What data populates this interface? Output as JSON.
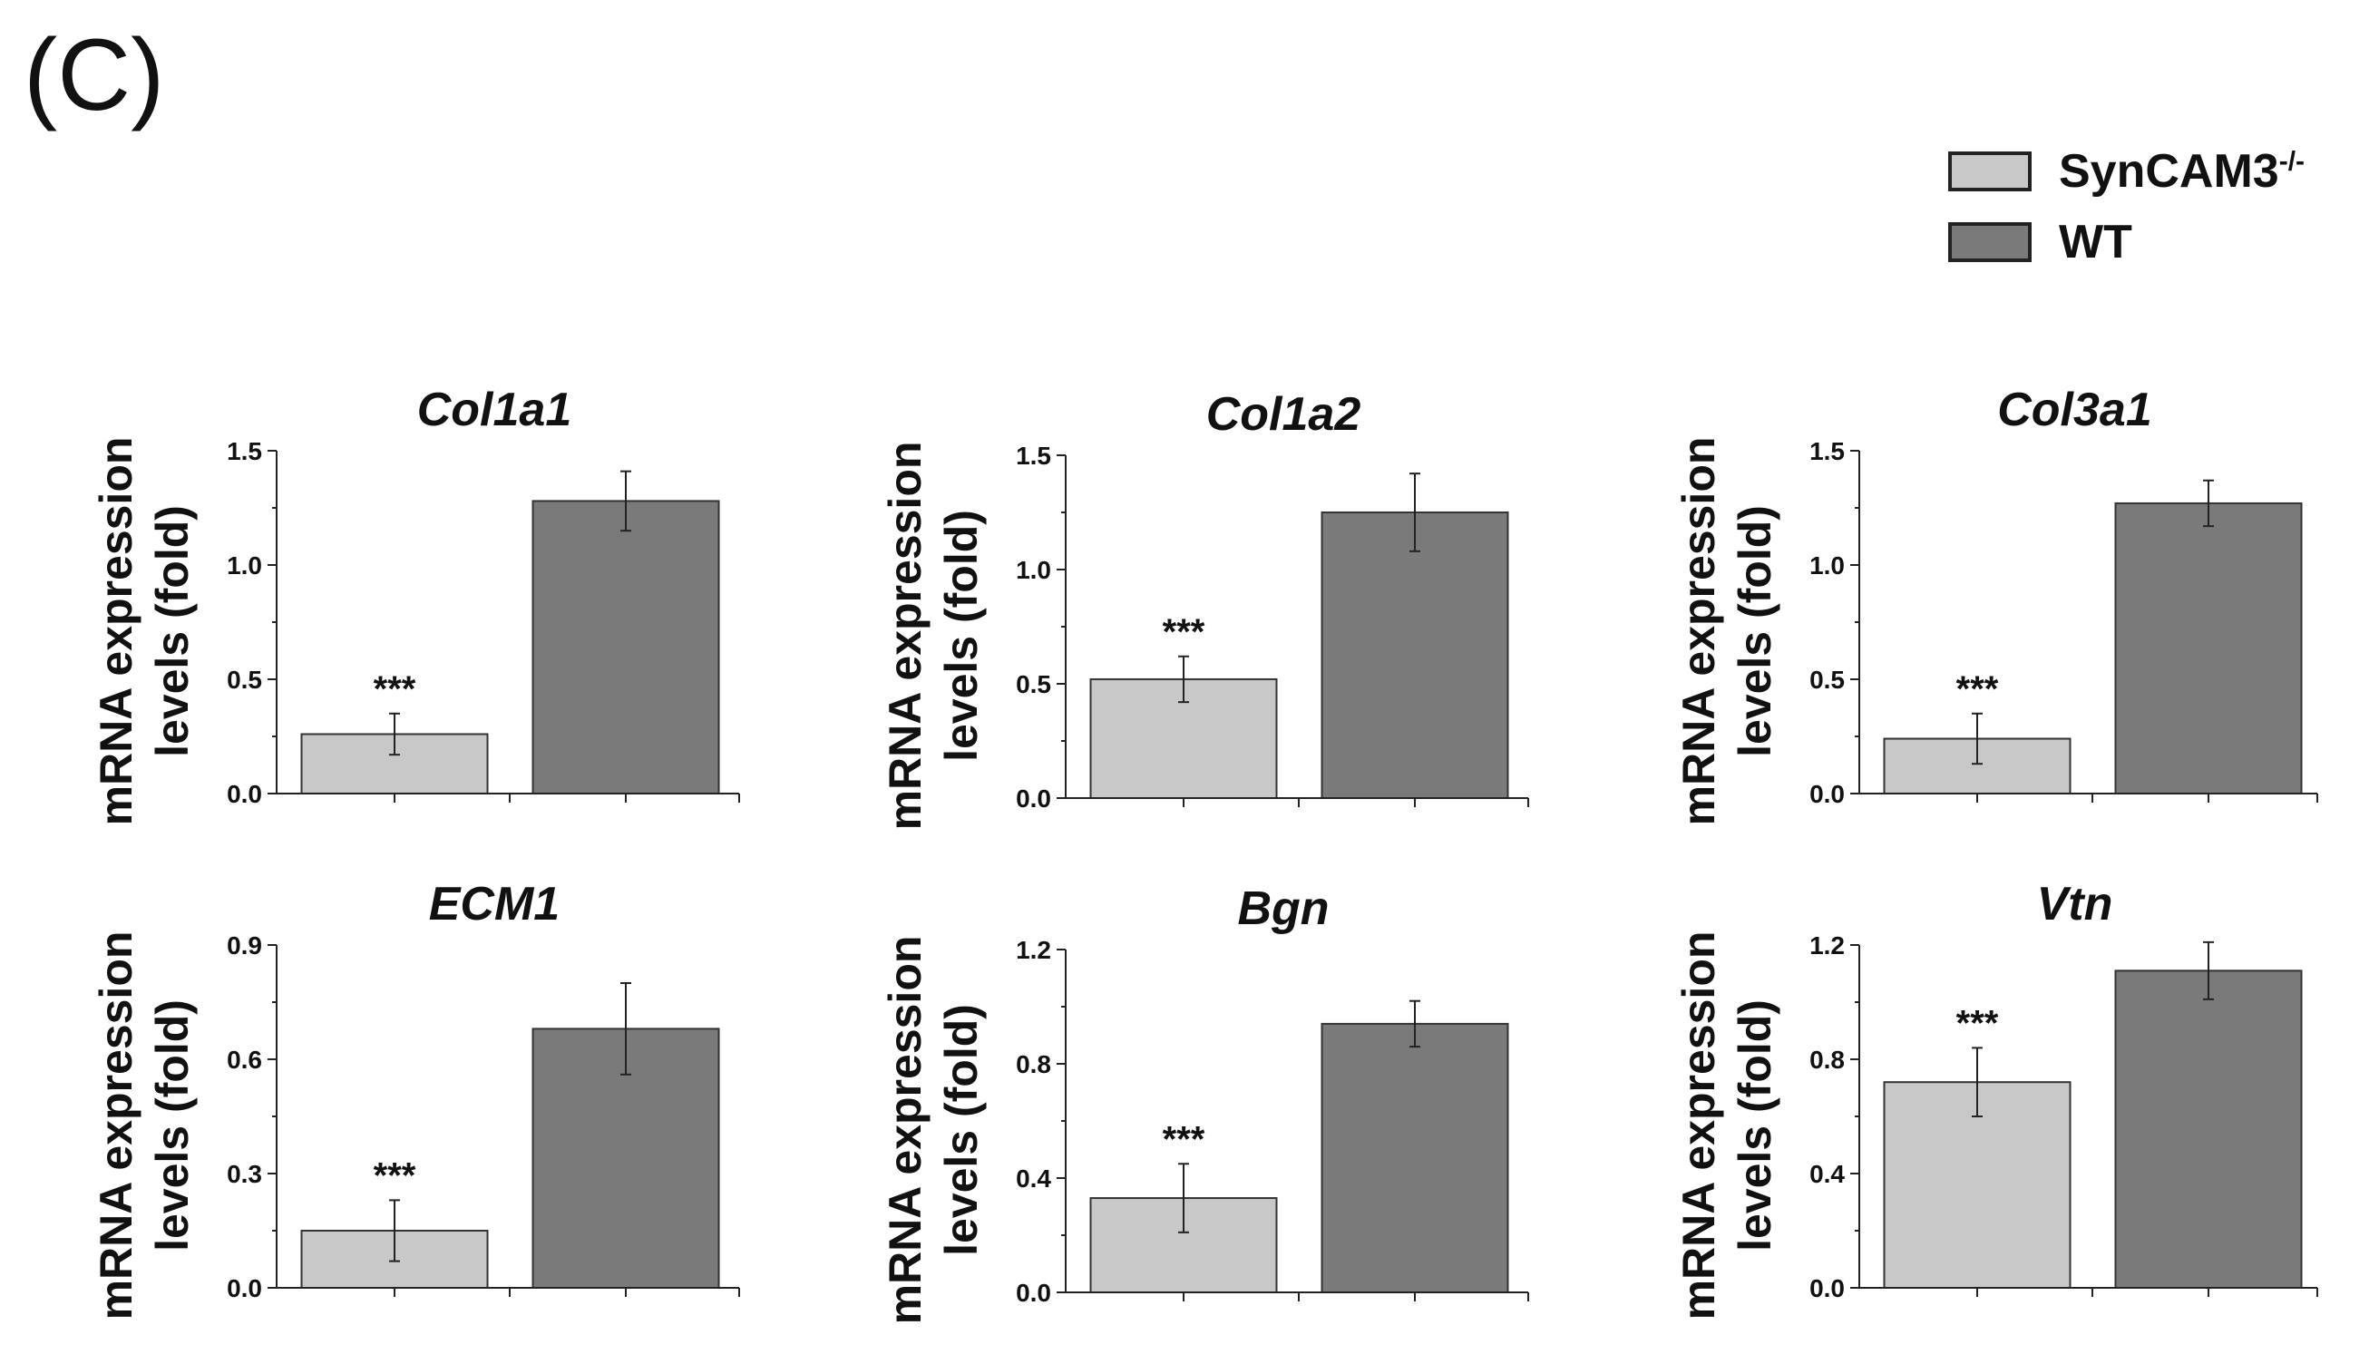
{
  "panel_label": "(C)",
  "legend": {
    "items": [
      {
        "name": "SynCAM3",
        "superscript": "-/-",
        "color": "#c8c8c8"
      },
      {
        "name": "WT",
        "superscript": "",
        "color": "#7a7a7a"
      }
    ]
  },
  "colors": {
    "syncam3": "#c8c8c8",
    "wt": "#7a7a7a",
    "axis": "#222222"
  },
  "chart_data": [
    {
      "type": "bar",
      "title": "Col1a1",
      "ylabel_line1": "mRNA expression",
      "ylabel_line2": "levels (fold)",
      "categories": [
        "SynCAM3-/-",
        "WT"
      ],
      "values": [
        0.26,
        1.28
      ],
      "errors": [
        0.09,
        0.13
      ],
      "ylim": [
        0,
        1.5
      ],
      "yticks": [
        "0.0",
        "0.5",
        "1.0",
        "1.5"
      ],
      "significance": [
        "***",
        ""
      ]
    },
    {
      "type": "bar",
      "title": "Col1a2",
      "ylabel_line1": "mRNA expression",
      "ylabel_line2": "levels (fold)",
      "categories": [
        "SynCAM3-/-",
        "WT"
      ],
      "values": [
        0.52,
        1.25
      ],
      "errors": [
        0.1,
        0.17
      ],
      "ylim": [
        0,
        1.5
      ],
      "yticks": [
        "0.0",
        "0.5",
        "1.0",
        "1.5"
      ],
      "significance": [
        "***",
        ""
      ]
    },
    {
      "type": "bar",
      "title": "Col3a1",
      "ylabel_line1": "mRNA expression",
      "ylabel_line2": "levels (fold)",
      "categories": [
        "SynCAM3-/-",
        "WT"
      ],
      "values": [
        0.24,
        1.27
      ],
      "errors": [
        0.11,
        0.1
      ],
      "ylim": [
        0,
        1.5
      ],
      "yticks": [
        "0.0",
        "0.5",
        "1.0",
        "1.5"
      ],
      "significance": [
        "***",
        ""
      ]
    },
    {
      "type": "bar",
      "title": "ECM1",
      "ylabel_line1": "mRNA expression",
      "ylabel_line2": "levels (fold)",
      "categories": [
        "SynCAM3-/-",
        "WT"
      ],
      "values": [
        0.15,
        0.68
      ],
      "errors": [
        0.08,
        0.12
      ],
      "ylim": [
        0,
        0.9
      ],
      "yticks": [
        "0.0",
        "0.3",
        "0.6",
        "0.9"
      ],
      "significance": [
        "***",
        ""
      ]
    },
    {
      "type": "bar",
      "title": "Bgn",
      "ylabel_line1": "mRNA expression",
      "ylabel_line2": "levels (fold)",
      "categories": [
        "SynCAM3-/-",
        "WT"
      ],
      "values": [
        0.33,
        0.94
      ],
      "errors": [
        0.12,
        0.08
      ],
      "ylim": [
        0,
        1.2
      ],
      "yticks": [
        "0.0",
        "0.4",
        "0.8",
        "1.2"
      ],
      "significance": [
        "***",
        ""
      ]
    },
    {
      "type": "bar",
      "title": "Vtn",
      "ylabel_line1": "mRNA expression",
      "ylabel_line2": "levels (fold)",
      "categories": [
        "SynCAM3-/-",
        "WT"
      ],
      "values": [
        0.72,
        1.11
      ],
      "errors": [
        0.12,
        0.1
      ],
      "ylim": [
        0,
        1.2
      ],
      "yticks": [
        "0.0",
        "0.4",
        "0.8",
        "1.2"
      ],
      "significance": [
        "***",
        ""
      ]
    }
  ]
}
